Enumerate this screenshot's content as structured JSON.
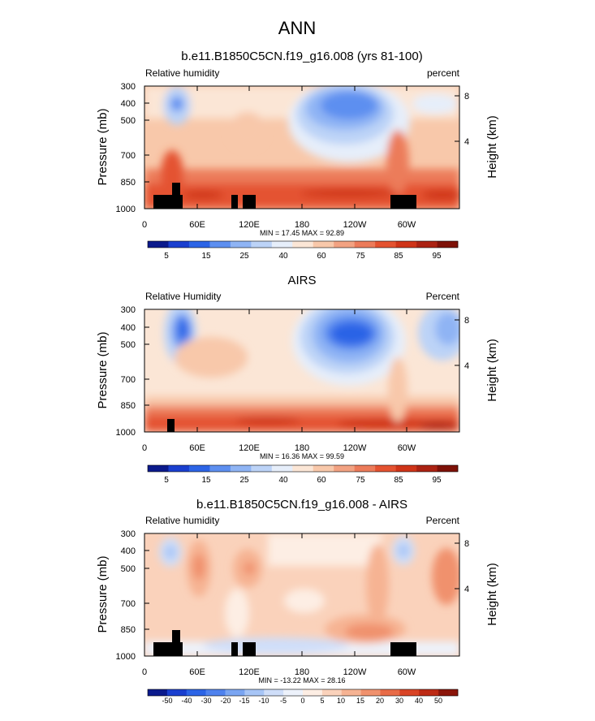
{
  "figure": {
    "title": "ANN"
  },
  "colors": {
    "abs_palette": [
      "#0b1a8c",
      "#1a3fcf",
      "#2c64e6",
      "#5d8ff0",
      "#8fb4f4",
      "#bcd3f7",
      "#e6eefa",
      "#fbe6d6",
      "#f8c8aa",
      "#f2a282",
      "#ec7b5a",
      "#e45230",
      "#cf3418",
      "#ab2212",
      "#7e1108"
    ],
    "diff_palette": [
      "#0b1a8c",
      "#1a3fcf",
      "#2c64e6",
      "#4f82ee",
      "#7aa5f2",
      "#a7c5f6",
      "#cfdef9",
      "#edf2fb",
      "#fdeee4",
      "#fad2bb",
      "#f6b393",
      "#f0916d",
      "#e86b47",
      "#d94426",
      "#bd2a14",
      "#8b150a"
    ]
  },
  "chart_data": [
    {
      "type": "heatmap",
      "title": "b.e11.B1850C5CN.f19_g16.008 (yrs 81-100)",
      "left_label": "Relative humidity",
      "right_label": "percent",
      "ylabel": "Pressure (mb)",
      "ylabel_right": "Height (km)",
      "y_ticks": [
        "300",
        "400",
        "500",
        "700",
        "850",
        "1000"
      ],
      "y_right_ticks": [
        "8",
        "4"
      ],
      "x_ticks": [
        "0",
        "60E",
        "120E",
        "180",
        "120W",
        "60W"
      ],
      "stats": "MIN =  17.45  MAX =  92.89",
      "colorbar": {
        "levels": [
          "5",
          "10",
          "15",
          "20",
          "25",
          "30",
          "40",
          "50",
          "60",
          "65",
          "75",
          "80",
          "85",
          "90",
          "95"
        ],
        "labels": [
          "5",
          "15",
          "25",
          "40",
          "60",
          "75",
          "85",
          "95"
        ]
      }
    },
    {
      "type": "heatmap",
      "title": "AIRS",
      "left_label": "Relative Humidity",
      "right_label": "Percent",
      "ylabel": "Pressure (mb)",
      "ylabel_right": "Height (km)",
      "y_ticks": [
        "300",
        "400",
        "500",
        "700",
        "850",
        "1000"
      ],
      "y_right_ticks": [
        "8",
        "4"
      ],
      "x_ticks": [
        "0",
        "60E",
        "120E",
        "180",
        "120W",
        "60W"
      ],
      "stats": "MIN =  16.36  MAX =  99.59",
      "colorbar": {
        "levels": [
          "5",
          "10",
          "15",
          "20",
          "25",
          "30",
          "40",
          "50",
          "60",
          "65",
          "75",
          "80",
          "85",
          "90",
          "95"
        ],
        "labels": [
          "5",
          "15",
          "25",
          "40",
          "60",
          "75",
          "85",
          "95"
        ]
      }
    },
    {
      "type": "heatmap",
      "title": "b.e11.B1850C5CN.f19_g16.008 - AIRS",
      "left_label": "Relative humidity",
      "right_label": "Percent",
      "ylabel": "Pressure (mb)",
      "ylabel_right": "Height (km)",
      "y_ticks": [
        "300",
        "400",
        "500",
        "700",
        "850",
        "1000"
      ],
      "y_right_ticks": [
        "8",
        "4"
      ],
      "x_ticks": [
        "0",
        "60E",
        "120E",
        "180",
        "120W",
        "60W"
      ],
      "stats": "MIN = -13.22  MAX =  28.16",
      "colorbar": {
        "levels": [
          "-50",
          "-40",
          "-30",
          "-20",
          "-15",
          "-10",
          "-5",
          "0",
          "5",
          "10",
          "15",
          "20",
          "30",
          "40",
          "50"
        ],
        "labels": [
          "-50",
          "-40",
          "-30",
          "-20",
          "-15",
          "-10",
          "-5",
          "0",
          "5",
          "10",
          "15",
          "20",
          "30",
          "40",
          "50"
        ]
      }
    }
  ]
}
